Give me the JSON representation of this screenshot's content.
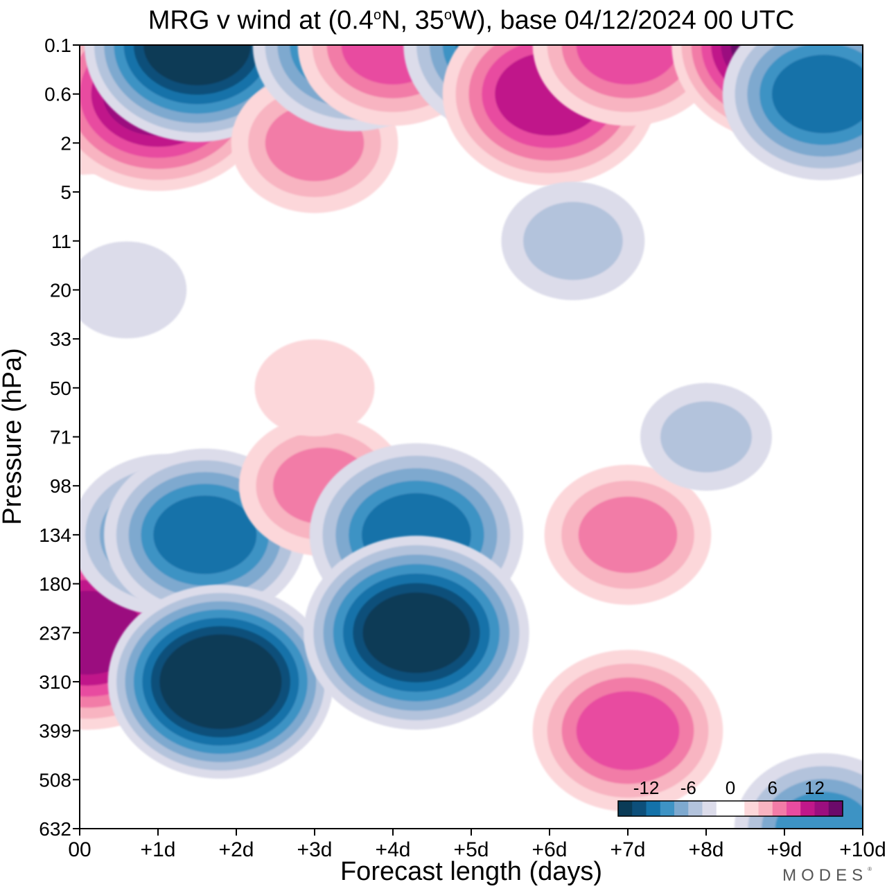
{
  "chart_data": {
    "type": "heatmap",
    "title": "MRG v wind at (0.4°N, 35°W),  base 04/12/2024  00 UTC",
    "title_parts": {
      "lead": "MRG v wind at (0.4",
      "deg1": "o",
      "mid": "N, 35",
      "deg2": "o",
      "tail": "W),  base 04/12/2024  00 UTC"
    },
    "xlabel": "Forecast length (days)",
    "ylabel": "Pressure (hPa)",
    "x_ticks": [
      "00",
      "+1d",
      "+2d",
      "+3d",
      "+4d",
      "+5d",
      "+6d",
      "+7d",
      "+8d",
      "+9d",
      "+10d"
    ],
    "xlim": [
      0,
      10
    ],
    "y_ticks": [
      "0.1",
      "0.6",
      "2",
      "5",
      "11",
      "20",
      "33",
      "50",
      "71",
      "98",
      "134",
      "180",
      "237",
      "310",
      "399",
      "508",
      "632"
    ],
    "colorbar": {
      "tick_labels": [
        "-12",
        "-6",
        "0",
        "6",
        "12"
      ],
      "tick_values": [
        -12,
        -6,
        0,
        6,
        12
      ],
      "levels": [
        -16,
        -14,
        -12,
        -10,
        -8,
        -6,
        -4,
        -2,
        0,
        2,
        4,
        6,
        8,
        10,
        12,
        14,
        16
      ],
      "colors": [
        "#0a3b57",
        "#0d4f7a",
        "#1472a9",
        "#3e93c4",
        "#7ea9cf",
        "#b3c3dc",
        "#dcdcea",
        "#ffffff",
        "#ffffff",
        "#fcd7da",
        "#f8b4c1",
        "#f27ca7",
        "#e84ca0",
        "#c0188a",
        "#9b0f7f",
        "#6b0a6a"
      ]
    },
    "fields": [
      {
        "x": 0.0,
        "level": "0.6",
        "value": 9
      },
      {
        "x": 0.1,
        "level": "237",
        "value": 13
      },
      {
        "x": 0.6,
        "level": "20",
        "value": -3
      },
      {
        "x": 1.0,
        "level": "0.6",
        "value": 13
      },
      {
        "x": 1.1,
        "level": "134",
        "value": -9
      },
      {
        "x": 1.5,
        "level": "0.1",
        "value": -15
      },
      {
        "x": 1.6,
        "level": "134",
        "value": -10
      },
      {
        "x": 1.8,
        "level": "310",
        "value": -16
      },
      {
        "x": 3.0,
        "level": "2",
        "value": 7
      },
      {
        "x": 3.1,
        "level": "98",
        "value": 7
      },
      {
        "x": 3.0,
        "level": "50",
        "value": 3
      },
      {
        "x": 3.5,
        "level": "0.1",
        "value": -10
      },
      {
        "x": 4.0,
        "level": "0.1",
        "value": 9
      },
      {
        "x": 4.3,
        "level": "134",
        "value": -11
      },
      {
        "x": 4.3,
        "level": "237",
        "value": -14
      },
      {
        "x": 5.5,
        "level": "0.1",
        "value": -11
      },
      {
        "x": 6.0,
        "level": "0.6",
        "value": 11
      },
      {
        "x": 6.3,
        "level": "11",
        "value": -5
      },
      {
        "x": 7.0,
        "level": "0.1",
        "value": 9
      },
      {
        "x": 7.0,
        "level": "134",
        "value": 7
      },
      {
        "x": 7.0,
        "level": "399",
        "value": 9
      },
      {
        "x": 8.0,
        "level": "71",
        "value": -4
      },
      {
        "x": 9.0,
        "level": "0.1",
        "value": 14
      },
      {
        "x": 9.5,
        "level": "0.6",
        "value": -10
      },
      {
        "x": 9.5,
        "level": "632",
        "value": -8
      }
    ]
  },
  "brand": {
    "name": "MODES",
    "mark": "®"
  }
}
